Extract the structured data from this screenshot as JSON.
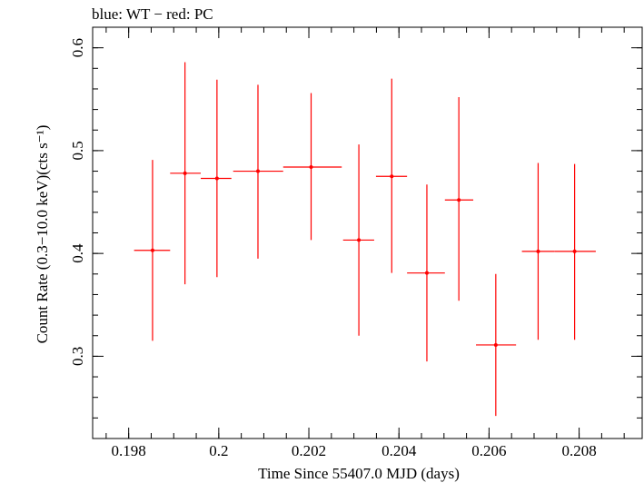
{
  "chart_data": {
    "type": "scatter",
    "title": "blue: WT − red: PC",
    "xlabel": "Time Since 55407.0 MJD (days)",
    "ylabel": "Count Rate (0.3−10.0 keV)(cts s⁻¹)",
    "xlim": [
      0.1972,
      0.2094
    ],
    "ylim": [
      0.22,
      0.62
    ],
    "xticks": [
      {
        "value": 0.198,
        "label": "0.198"
      },
      {
        "value": 0.2,
        "label": "0.2"
      },
      {
        "value": 0.202,
        "label": "0.202"
      },
      {
        "value": 0.204,
        "label": "0.204"
      },
      {
        "value": 0.206,
        "label": "0.206"
      },
      {
        "value": 0.208,
        "label": "0.208"
      }
    ],
    "yticks": [
      {
        "value": 0.3,
        "label": "0.3"
      },
      {
        "value": 0.4,
        "label": "0.4"
      },
      {
        "value": 0.5,
        "label": "0.5"
      },
      {
        "value": 0.6,
        "label": "0.6"
      }
    ],
    "x_minor_step": 0.0005,
    "y_minor_step": 0.02,
    "grid": false,
    "series": [
      {
        "color": "#ff0000",
        "points": [
          {
            "x": 0.19853,
            "xlo": 0.19812,
            "xhi": 0.19892,
            "y": 0.403,
            "ylo": 0.315,
            "yhi": 0.491
          },
          {
            "x": 0.19925,
            "xlo": 0.19892,
            "xhi": 0.1996,
            "y": 0.478,
            "ylo": 0.37,
            "yhi": 0.586
          },
          {
            "x": 0.19996,
            "xlo": 0.1996,
            "xhi": 0.20028,
            "y": 0.473,
            "ylo": 0.377,
            "yhi": 0.569
          },
          {
            "x": 0.20087,
            "xlo": 0.20032,
            "xhi": 0.20143,
            "y": 0.48,
            "ylo": 0.395,
            "yhi": 0.564
          },
          {
            "x": 0.20205,
            "xlo": 0.20143,
            "xhi": 0.20273,
            "y": 0.484,
            "ylo": 0.413,
            "yhi": 0.556
          },
          {
            "x": 0.20311,
            "xlo": 0.20276,
            "xhi": 0.20345,
            "y": 0.413,
            "ylo": 0.32,
            "yhi": 0.506
          },
          {
            "x": 0.20384,
            "xlo": 0.20349,
            "xhi": 0.20418,
            "y": 0.475,
            "ylo": 0.381,
            "yhi": 0.57
          },
          {
            "x": 0.20462,
            "xlo": 0.20418,
            "xhi": 0.20502,
            "y": 0.381,
            "ylo": 0.295,
            "yhi": 0.467
          },
          {
            "x": 0.20533,
            "xlo": 0.20502,
            "xhi": 0.20565,
            "y": 0.452,
            "ylo": 0.354,
            "yhi": 0.552
          },
          {
            "x": 0.20615,
            "xlo": 0.20571,
            "xhi": 0.2066,
            "y": 0.311,
            "ylo": 0.242,
            "yhi": 0.38
          },
          {
            "x": 0.20709,
            "xlo": 0.20673,
            "xhi": 0.20746,
            "y": 0.402,
            "ylo": 0.316,
            "yhi": 0.488
          },
          {
            "x": 0.2079,
            "xlo": 0.20746,
            "xhi": 0.20837,
            "y": 0.402,
            "ylo": 0.316,
            "yhi": 0.487
          }
        ]
      }
    ]
  }
}
